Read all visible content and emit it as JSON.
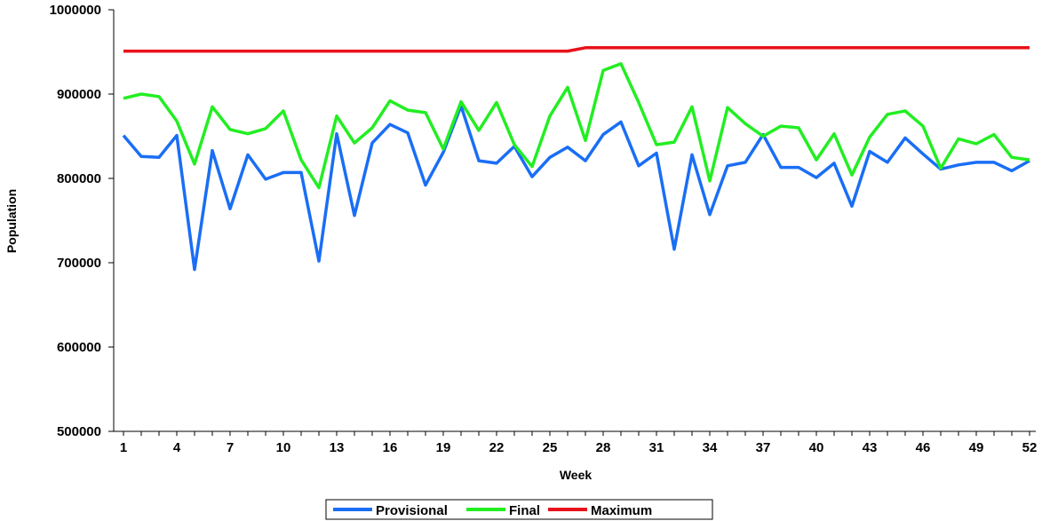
{
  "chart_data": {
    "type": "line",
    "title": "",
    "xlabel": "Week",
    "ylabel": "Population",
    "ylim": [
      500000,
      1000000
    ],
    "yticks": [
      500000,
      600000,
      700000,
      800000,
      900000,
      1000000
    ],
    "xticks": [
      1,
      4,
      7,
      10,
      13,
      16,
      19,
      22,
      25,
      28,
      31,
      34,
      37,
      40,
      43,
      46,
      49,
      52
    ],
    "x": [
      1,
      2,
      3,
      4,
      5,
      6,
      7,
      8,
      9,
      10,
      11,
      12,
      13,
      14,
      15,
      16,
      17,
      18,
      19,
      20,
      21,
      22,
      23,
      24,
      25,
      26,
      27,
      28,
      29,
      30,
      31,
      32,
      33,
      34,
      35,
      36,
      37,
      38,
      39,
      40,
      41,
      42,
      43,
      44,
      45,
      46,
      47,
      48,
      49,
      50,
      51,
      52
    ],
    "legend_position": "bottom",
    "grid": false,
    "series": [
      {
        "name": "Provisional",
        "color": "#1a6ef5",
        "values": [
          851000,
          826000,
          825000,
          851000,
          692000,
          833000,
          764000,
          828000,
          799000,
          807000,
          807000,
          702000,
          853000,
          756000,
          842000,
          864000,
          854000,
          792000,
          831000,
          886000,
          821000,
          818000,
          838000,
          802000,
          825000,
          837000,
          821000,
          852000,
          867000,
          815000,
          830000,
          716000,
          828000,
          757000,
          815000,
          819000,
          852000,
          813000,
          813000,
          801000,
          818000,
          767000,
          832000,
          819000,
          848000,
          829000,
          811000,
          816000,
          819000,
          819000,
          809000,
          821000
        ]
      },
      {
        "name": "Final",
        "color": "#22ee22",
        "values": [
          895000,
          900000,
          897000,
          868000,
          817000,
          885000,
          858000,
          853000,
          859000,
          880000,
          822000,
          789000,
          874000,
          842000,
          860000,
          892000,
          881000,
          878000,
          835000,
          891000,
          857000,
          890000,
          840000,
          814000,
          874000,
          908000,
          845000,
          928000,
          936000,
          890000,
          840000,
          843000,
          885000,
          797000,
          884000,
          865000,
          850000,
          862000,
          860000,
          822000,
          853000,
          804000,
          849000,
          876000,
          880000,
          862000,
          812000,
          847000,
          841000,
          852000,
          825000,
          822000
        ]
      },
      {
        "name": "Maximum",
        "color": "#e8121a",
        "values": [
          951000,
          951000,
          951000,
          951000,
          951000,
          951000,
          951000,
          951000,
          951000,
          951000,
          951000,
          951000,
          951000,
          951000,
          951000,
          951000,
          951000,
          951000,
          951000,
          951000,
          951000,
          951000,
          951000,
          951000,
          951000,
          951000,
          955000,
          955000,
          955000,
          955000,
          955000,
          955000,
          955000,
          955000,
          955000,
          955000,
          955000,
          955000,
          955000,
          955000,
          955000,
          955000,
          955000,
          955000,
          955000,
          955000,
          955000,
          955000,
          955000,
          955000,
          955000,
          955000
        ]
      }
    ]
  }
}
